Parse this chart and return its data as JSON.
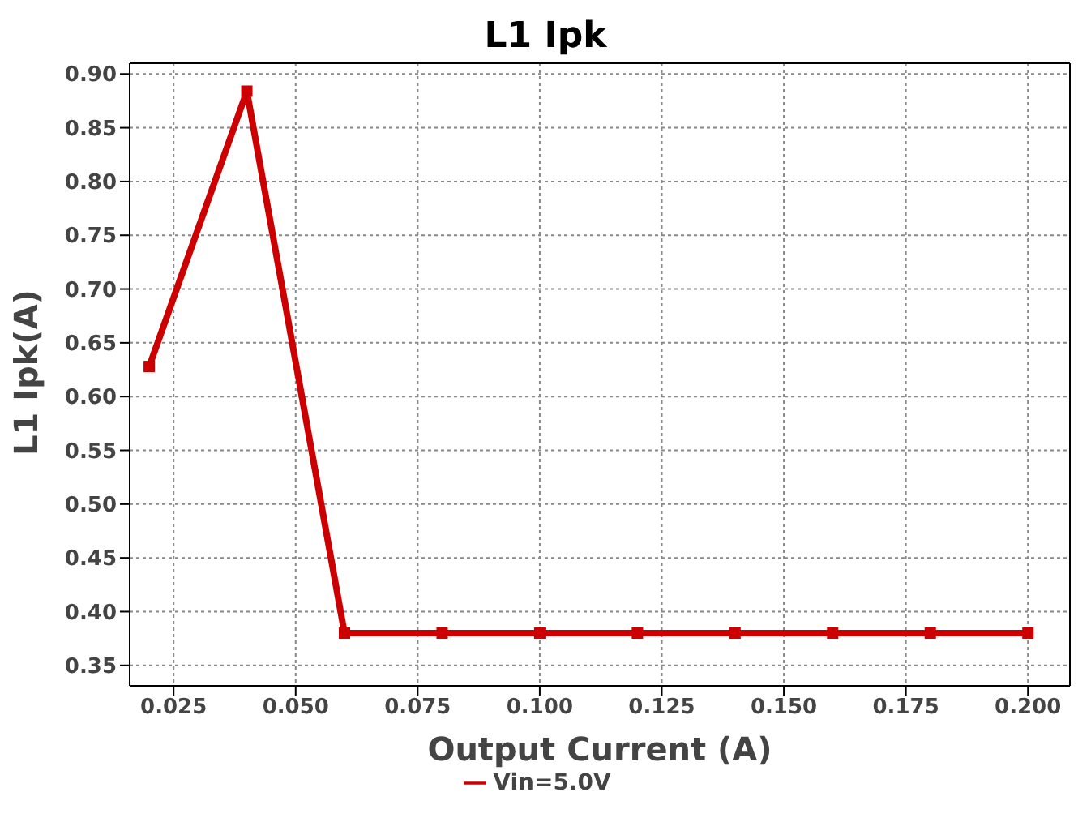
{
  "chart_data": {
    "type": "line",
    "title": "L1 Ipk",
    "xlabel": "Output Current (A)",
    "ylabel": "L1 Ipk(A)",
    "x": [
      0.02,
      0.04,
      0.06,
      0.08,
      0.1,
      0.12,
      0.14,
      0.16,
      0.18,
      0.2
    ],
    "series": [
      {
        "name": "Vin=5.0V",
        "color": "#cc0000",
        "values": [
          0.628,
          0.884,
          0.38,
          0.38,
          0.38,
          0.38,
          0.38,
          0.38,
          0.38,
          0.38
        ]
      }
    ],
    "xlim": [
      0.016,
      0.2086
    ],
    "xticks": [
      {
        "value": 0.025,
        "label": "0.025"
      },
      {
        "value": 0.05,
        "label": "0.050"
      },
      {
        "value": 0.075,
        "label": "0.075"
      },
      {
        "value": 0.1,
        "label": "0.100"
      },
      {
        "value": 0.125,
        "label": "0.125"
      },
      {
        "value": 0.15,
        "label": "0.150"
      },
      {
        "value": 0.175,
        "label": "0.175"
      },
      {
        "value": 0.2,
        "label": "0.200"
      }
    ],
    "ylim": [
      0.331,
      0.91
    ],
    "yticks": [
      {
        "value": 0.35,
        "label": "0.35"
      },
      {
        "value": 0.4,
        "label": "0.40"
      },
      {
        "value": 0.45,
        "label": "0.45"
      },
      {
        "value": 0.5,
        "label": "0.50"
      },
      {
        "value": 0.55,
        "label": "0.55"
      },
      {
        "value": 0.6,
        "label": "0.60"
      },
      {
        "value": 0.65,
        "label": "0.65"
      },
      {
        "value": 0.7,
        "label": "0.70"
      },
      {
        "value": 0.75,
        "label": "0.75"
      },
      {
        "value": 0.8,
        "label": "0.80"
      },
      {
        "value": 0.85,
        "label": "0.85"
      },
      {
        "value": 0.9,
        "label": "0.90"
      }
    ],
    "grid": true,
    "legend": "bottom",
    "marker": "square",
    "line_style": "solid"
  }
}
